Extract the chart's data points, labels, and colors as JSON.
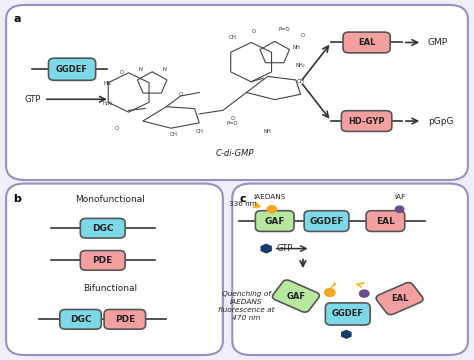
{
  "bg_color": "#f0eef8",
  "panel_bg": "#ffffff",
  "panel_border": "#9b8ec4",
  "cyan_box_color": "#7dd8e8",
  "pink_box_color": "#f4a0a0",
  "green_box_color": "#b8e8a0",
  "ggdef_text": "GGDEF",
  "eal_text": "EAL",
  "hdgyp_text": "HD-GYP",
  "dgc_text": "DGC",
  "pde_text": "PDE",
  "gaf_text": "GAF",
  "gtp_text": "GTP",
  "gmp_text": "GMP",
  "pgpg_text": "pGpG",
  "cdigmp_text": "C-di-GMP",
  "monofunctional_text": "Monofunctional",
  "bifunctional_text": "Bifunctional",
  "iaedans_text": "IAEDANS",
  "iaf_text": "IAF",
  "nm336_text": "336 nm",
  "quenching_text": "Quenching of\nIAEDANS\nfluorescence at\n470 nm",
  "orange_color": "#f5a623",
  "purple_color": "#6b4c8a",
  "dark_blue_color": "#1a3a6b"
}
